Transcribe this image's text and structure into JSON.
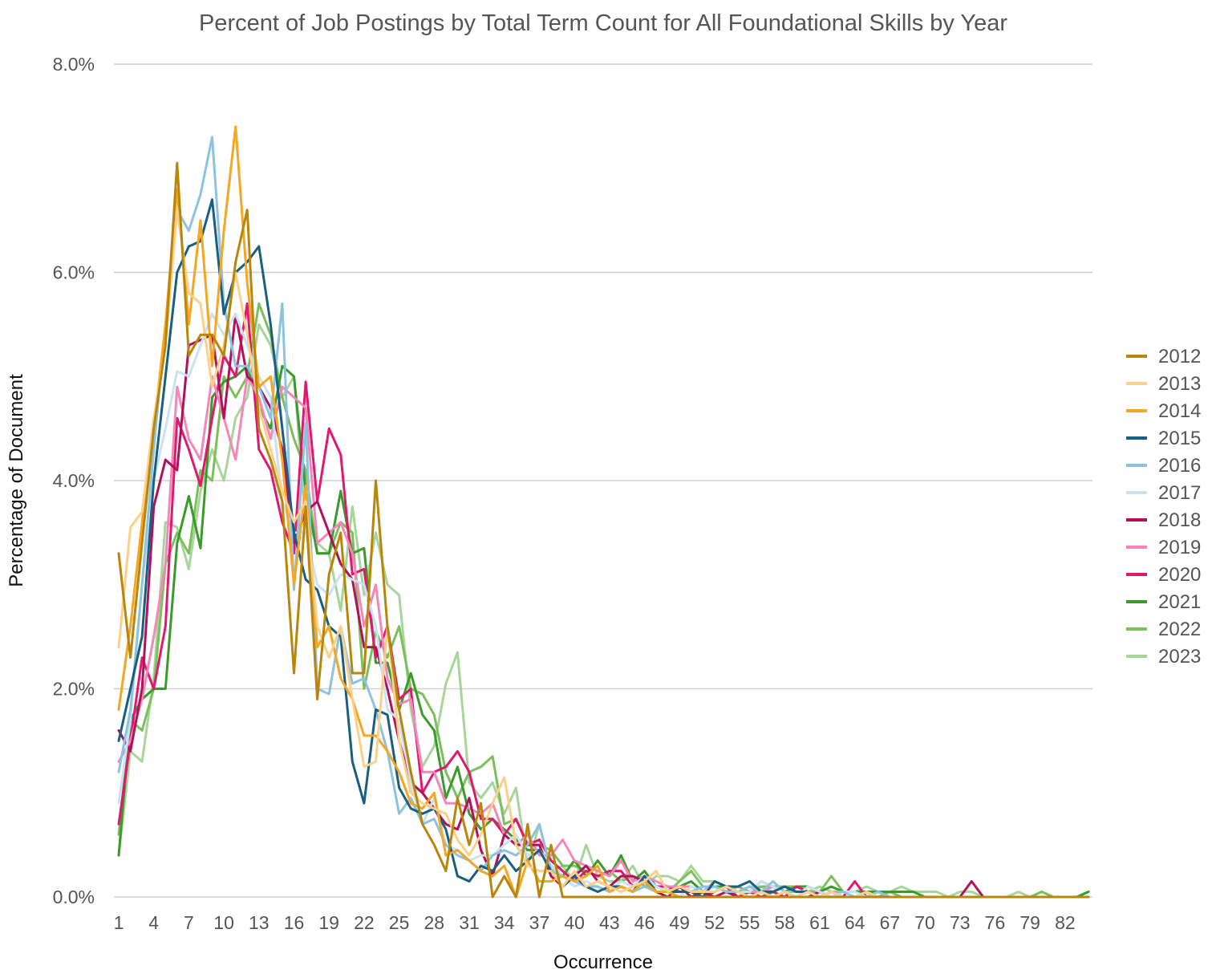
{
  "chart_data": {
    "type": "line",
    "title": "Percent of Job Postings by Total Term Count for All Foundational Skills by Year",
    "xlabel": "Occurrence",
    "ylabel": "Percentage of Document",
    "x_min": 1,
    "x_max": 84,
    "x_ticks": [
      "1",
      "4",
      "7",
      "10",
      "13",
      "16",
      "19",
      "22",
      "25",
      "28",
      "31",
      "34",
      "37",
      "40",
      "43",
      "46",
      "49",
      "52",
      "55",
      "58",
      "61",
      "64",
      "67",
      "70",
      "73",
      "76",
      "79",
      "82"
    ],
    "ylim": [
      0,
      8
    ],
    "y_ticks": [
      "0.0%",
      "2.0%",
      "4.0%",
      "6.0%",
      "8.0%"
    ],
    "grid": "horizontal",
    "legend_position": "right",
    "series": [
      {
        "name": "2012",
        "color": "#b8860b",
        "values": [
          3.3,
          2.3,
          3.4,
          4.5,
          5.3,
          7.05,
          5.2,
          5.4,
          5.4,
          5.2,
          6.1,
          6.6,
          4.5,
          4.2,
          3.8,
          2.15,
          3.75,
          1.9,
          3.1,
          3.5,
          2.15,
          2.15,
          4.0,
          2.6,
          1.8,
          1.2,
          0.7,
          0.5,
          0.25,
          0.95,
          0.5,
          0.9,
          0.0,
          0.2,
          0.0,
          0.7,
          0.0,
          0.5,
          0.0,
          0.0,
          0.0,
          0.0,
          0.0,
          0.0,
          0.0,
          0.0,
          0.0,
          0.0,
          0.0,
          0.0,
          0.0,
          0.0,
          0.0,
          0.0,
          0.0,
          0.0,
          0.0,
          0.0,
          0.0,
          0.0,
          0.0,
          0.0,
          0.0,
          0.0,
          0.0,
          0.0,
          0.0,
          0.0,
          0.0,
          0.0,
          0.0,
          0.0,
          0.0,
          0.0,
          0.0,
          0.0,
          0.0,
          0.0,
          0.0,
          0.0,
          0.0,
          0.0,
          0.0,
          0.0
        ]
      },
      {
        "name": "2013",
        "color": "#fdd08a",
        "values": [
          2.4,
          3.55,
          3.7,
          4.6,
          5.3,
          6.6,
          5.8,
          5.7,
          4.9,
          5.3,
          6.0,
          5.4,
          4.7,
          4.3,
          3.9,
          3.6,
          3.8,
          2.6,
          2.3,
          2.6,
          1.9,
          1.25,
          1.3,
          2.6,
          1.5,
          1.0,
          0.9,
          0.85,
          0.8,
          0.55,
          0.4,
          0.6,
          0.9,
          1.15,
          0.5,
          0.3,
          0.25,
          0.25,
          0.1,
          0.25,
          0.1,
          0.15,
          0.1,
          0.05,
          0.1,
          0.15,
          0.25,
          0.05,
          0.1,
          0.05,
          0.05,
          0.05,
          0.1,
          0.05,
          0.0,
          0.05,
          0.0,
          0.05,
          0.0,
          0.05,
          0.0,
          0.05,
          0.0,
          0.0,
          0.05,
          0.0,
          0.0,
          0.0,
          0.0,
          0.0,
          0.0,
          0.0,
          0.0,
          0.0,
          0.0,
          0.0,
          0.0,
          0.0,
          0.0,
          0.0,
          0.0,
          0.0,
          0.0,
          0.0
        ]
      },
      {
        "name": "2014",
        "color": "#f5a623",
        "values": [
          1.8,
          2.6,
          3.6,
          4.5,
          5.5,
          6.8,
          5.5,
          6.5,
          5.1,
          6.4,
          7.4,
          5.9,
          4.9,
          5.0,
          4.2,
          3.0,
          3.95,
          2.4,
          2.6,
          2.1,
          1.9,
          1.55,
          1.55,
          1.4,
          1.2,
          0.9,
          0.85,
          1.0,
          0.4,
          0.45,
          0.35,
          0.25,
          0.2,
          0.3,
          0.0,
          0.35,
          0.15,
          0.15,
          0.2,
          0.15,
          0.2,
          0.3,
          0.05,
          0.1,
          0.05,
          0.15,
          0.05,
          0.05,
          0.0,
          0.0,
          0.0,
          0.0,
          0.0,
          0.0,
          0.0,
          0.0,
          0.0,
          0.0,
          0.0,
          0.0,
          0.0,
          0.0,
          0.0,
          0.0,
          0.0,
          0.0,
          0.0,
          0.0,
          0.0,
          0.0,
          0.0,
          0.0,
          0.0,
          0.0,
          0.0,
          0.0,
          0.0,
          0.0,
          0.0,
          0.0,
          0.0,
          0.0,
          0.0,
          0.0
        ]
      },
      {
        "name": "2015",
        "color": "#1a5e80",
        "values": [
          1.5,
          2.0,
          2.5,
          4.0,
          5.0,
          6.0,
          6.25,
          6.3,
          6.7,
          5.6,
          6.0,
          6.1,
          6.25,
          5.5,
          4.5,
          3.5,
          3.05,
          2.95,
          2.6,
          2.5,
          1.3,
          0.9,
          1.8,
          1.75,
          1.05,
          0.85,
          0.8,
          0.85,
          0.65,
          0.2,
          0.15,
          0.3,
          0.25,
          0.4,
          0.25,
          0.35,
          0.45,
          0.25,
          0.1,
          0.2,
          0.1,
          0.05,
          0.1,
          0.1,
          0.05,
          0.2,
          0.05,
          0.05,
          0.05,
          0.05,
          0.0,
          0.15,
          0.1,
          0.1,
          0.15,
          0.05,
          0.05,
          0.1,
          0.05,
          0.05,
          0.0,
          0.05,
          0.0,
          0.0,
          0.0,
          0.0,
          0.0,
          0.0,
          0.0,
          0.0,
          0.0,
          0.0,
          0.0,
          0.0,
          0.0,
          0.0,
          0.0,
          0.0,
          0.0,
          0.0,
          0.0,
          0.0,
          0.0,
          0.0
        ]
      },
      {
        "name": "2016",
        "color": "#8ec3e0",
        "values": [
          1.2,
          1.8,
          3.0,
          4.3,
          5.5,
          6.6,
          6.4,
          6.75,
          7.3,
          5.7,
          5.1,
          5.1,
          4.9,
          4.6,
          5.7,
          2.95,
          4.55,
          2.0,
          1.95,
          2.6,
          2.05,
          2.1,
          1.8,
          1.4,
          0.8,
          0.95,
          0.7,
          0.75,
          0.5,
          0.4,
          0.35,
          0.25,
          0.4,
          0.45,
          0.4,
          0.5,
          0.7,
          0.25,
          0.2,
          0.15,
          0.1,
          0.1,
          0.05,
          0.1,
          0.05,
          0.1,
          0.05,
          0.05,
          0.05,
          0.05,
          0.1,
          0.1,
          0.05,
          0.05,
          0.1,
          0.05,
          0.15,
          0.05,
          0.05,
          0.05,
          0.0,
          0.05,
          0.05,
          0.0,
          0.0,
          0.05,
          0.0,
          0.0,
          0.0,
          0.0,
          0.0,
          0.0,
          0.0,
          0.0,
          0.0,
          0.0,
          0.0,
          0.0,
          0.0,
          0.0,
          0.0,
          0.0,
          0.0,
          0.0
        ]
      },
      {
        "name": "2017",
        "color": "#c9e1f2",
        "values": [
          0.9,
          1.7,
          3.0,
          4.0,
          4.5,
          5.05,
          5.0,
          5.3,
          5.6,
          5.4,
          5.6,
          5.3,
          5.0,
          4.8,
          3.8,
          3.5,
          3.5,
          3.0,
          2.9,
          3.1,
          3.05,
          3.0,
          2.6,
          1.8,
          1.7,
          1.1,
          0.7,
          0.95,
          0.5,
          0.45,
          0.35,
          0.4,
          0.4,
          0.5,
          0.6,
          0.4,
          0.45,
          0.3,
          0.2,
          0.1,
          0.15,
          0.1,
          0.05,
          0.15,
          0.1,
          0.2,
          0.1,
          0.05,
          0.0,
          0.1,
          0.05,
          0.1,
          0.05,
          0.05,
          0.05,
          0.15,
          0.1,
          0.05,
          0.0,
          0.1,
          0.05,
          0.0,
          0.05,
          0.05,
          0.0,
          0.0,
          0.0,
          0.0,
          0.0,
          0.0,
          0.0,
          0.0,
          0.0,
          0.0,
          0.0,
          0.0,
          0.0,
          0.0,
          0.0,
          0.0,
          0.0,
          0.0,
          0.0,
          0.0
        ]
      },
      {
        "name": "2018",
        "color": "#b0125a",
        "values": [
          1.6,
          1.4,
          2.0,
          3.75,
          4.2,
          4.1,
          5.3,
          5.35,
          5.4,
          4.6,
          5.6,
          5.0,
          4.9,
          4.7,
          4.3,
          3.4,
          3.7,
          3.8,
          3.5,
          3.2,
          3.05,
          2.4,
          2.4,
          2.0,
          1.5,
          1.1,
          1.0,
          0.85,
          0.7,
          0.65,
          0.95,
          0.45,
          0.2,
          0.6,
          0.5,
          0.5,
          0.5,
          0.2,
          0.1,
          0.2,
          0.3,
          0.15,
          0.1,
          0.2,
          0.2,
          0.15,
          0.05,
          0.0,
          0.1,
          0.0,
          0.05,
          0.0,
          0.05,
          0.0,
          0.0,
          0.05,
          0.0,
          0.05,
          0.0,
          0.0,
          0.05,
          0.0,
          0.0,
          0.0,
          0.0,
          0.0,
          0.0,
          0.0,
          0.0,
          0.0,
          0.0,
          0.0,
          0.0,
          0.15,
          0.0,
          0.0,
          0.0,
          0.0,
          0.0,
          0.0,
          0.0,
          0.0,
          0.0,
          0.0
        ]
      },
      {
        "name": "2019",
        "color": "#f287b8",
        "values": [
          1.3,
          1.5,
          1.9,
          2.5,
          3.2,
          4.9,
          4.4,
          4.2,
          5.0,
          4.6,
          4.2,
          5.0,
          4.8,
          4.4,
          4.9,
          4.8,
          4.7,
          3.4,
          3.5,
          3.6,
          3.3,
          2.6,
          3.0,
          2.1,
          1.85,
          1.9,
          1.2,
          1.2,
          0.9,
          0.9,
          0.85,
          0.8,
          0.9,
          0.6,
          0.5,
          0.6,
          0.4,
          0.4,
          0.55,
          0.35,
          0.3,
          0.25,
          0.2,
          0.35,
          0.15,
          0.2,
          0.15,
          0.1,
          0.1,
          0.1,
          0.05,
          0.15,
          0.1,
          0.05,
          0.05,
          0.05,
          0.1,
          0.05,
          0.05,
          0.05,
          0.0,
          0.0,
          0.0,
          0.0,
          0.0,
          0.0,
          0.0,
          0.0,
          0.0,
          0.0,
          0.0,
          0.0,
          0.0,
          0.0,
          0.0,
          0.0,
          0.0,
          0.0,
          0.0,
          0.0,
          0.0,
          0.0,
          0.0,
          0.0
        ]
      },
      {
        "name": "2020",
        "color": "#e0186f",
        "values": [
          0.7,
          1.5,
          2.3,
          2.0,
          2.6,
          4.6,
          4.3,
          3.95,
          4.6,
          5.2,
          5.0,
          5.7,
          4.3,
          4.1,
          3.6,
          3.3,
          4.95,
          3.8,
          4.5,
          4.25,
          3.1,
          3.15,
          2.3,
          2.6,
          1.9,
          2.0,
          1.0,
          1.2,
          1.25,
          1.4,
          1.2,
          0.75,
          0.75,
          0.6,
          0.75,
          0.5,
          0.55,
          0.35,
          0.25,
          0.15,
          0.25,
          0.2,
          0.25,
          0.25,
          0.1,
          0.2,
          0.1,
          0.1,
          0.05,
          0.05,
          0.0,
          0.05,
          0.1,
          0.0,
          0.05,
          0.0,
          0.05,
          0.0,
          0.1,
          0.05,
          0.0,
          0.0,
          0.0,
          0.15,
          0.0,
          0.0,
          0.0,
          0.0,
          0.0,
          0.0,
          0.0,
          0.0,
          0.0,
          0.0,
          0.0,
          0.0,
          0.0,
          0.0,
          0.0,
          0.0,
          0.0,
          0.0,
          0.0,
          0.0
        ]
      },
      {
        "name": "2021",
        "color": "#3a9a2a",
        "values": [
          0.4,
          1.7,
          1.9,
          2.0,
          2.0,
          3.4,
          3.85,
          3.35,
          4.8,
          4.95,
          5.0,
          5.1,
          4.7,
          4.5,
          5.1,
          5.0,
          3.9,
          3.3,
          3.3,
          3.9,
          3.3,
          3.35,
          2.25,
          2.25,
          1.8,
          2.15,
          1.75,
          1.6,
          0.95,
          1.25,
          0.8,
          0.65,
          0.75,
          0.65,
          0.55,
          0.45,
          0.45,
          0.3,
          0.2,
          0.35,
          0.2,
          0.35,
          0.2,
          0.4,
          0.15,
          0.25,
          0.1,
          0.1,
          0.1,
          0.15,
          0.05,
          0.1,
          0.1,
          0.05,
          0.05,
          0.15,
          0.1,
          0.05,
          0.1,
          0.1,
          0.05,
          0.1,
          0.05,
          0.05,
          0.05,
          0.05,
          0.05,
          0.05,
          0.05,
          0.0,
          0.0,
          0.0,
          0.0,
          0.0,
          0.0,
          0.0,
          0.0,
          0.0,
          0.0,
          0.0,
          0.0,
          0.0,
          0.0,
          0.05
        ]
      },
      {
        "name": "2022",
        "color": "#7cbf5c",
        "values": [
          0.6,
          1.7,
          1.6,
          2.0,
          3.2,
          3.5,
          3.3,
          4.1,
          4.0,
          5.0,
          4.8,
          5.0,
          5.7,
          5.4,
          4.8,
          4.4,
          4.1,
          3.3,
          3.3,
          3.6,
          3.5,
          2.0,
          2.55,
          2.3,
          2.6,
          2.0,
          1.95,
          1.75,
          1.2,
          0.95,
          1.2,
          1.25,
          1.35,
          0.7,
          0.75,
          0.5,
          0.5,
          0.45,
          0.3,
          0.3,
          0.25,
          0.2,
          0.25,
          0.15,
          0.2,
          0.1,
          0.1,
          0.05,
          0.15,
          0.25,
          0.1,
          0.1,
          0.05,
          0.1,
          0.05,
          0.1,
          0.1,
          0.1,
          0.1,
          0.05,
          0.05,
          0.2,
          0.05,
          0.05,
          0.05,
          0.0,
          0.05,
          0.0,
          0.0,
          0.0,
          0.0,
          0.0,
          0.0,
          0.0,
          0.0,
          0.0,
          0.0,
          0.0,
          0.0,
          0.05,
          0.0,
          0.0,
          0.0,
          0.05
        ]
      },
      {
        "name": "2023",
        "color": "#a8d59a",
        "values": [
          0.4,
          1.4,
          1.3,
          2.1,
          3.6,
          3.55,
          3.15,
          3.9,
          4.3,
          4.0,
          4.6,
          4.8,
          5.5,
          5.3,
          4.8,
          5.0,
          3.6,
          3.4,
          3.3,
          2.75,
          3.75,
          2.9,
          3.5,
          3.0,
          2.9,
          1.8,
          1.25,
          1.45,
          2.05,
          2.35,
          1.1,
          0.95,
          1.1,
          0.8,
          1.05,
          0.3,
          0.7,
          0.25,
          0.3,
          0.15,
          0.5,
          0.2,
          0.15,
          0.15,
          0.3,
          0.1,
          0.2,
          0.2,
          0.15,
          0.3,
          0.15,
          0.15,
          0.1,
          0.05,
          0.1,
          0.1,
          0.05,
          0.1,
          0.05,
          0.05,
          0.1,
          0.05,
          0.05,
          0.05,
          0.1,
          0.05,
          0.05,
          0.1,
          0.05,
          0.05,
          0.05,
          0.0,
          0.05,
          0.05,
          0.0,
          0.0,
          0.0,
          0.05,
          0.0,
          0.05,
          0.0,
          0.0,
          0.0,
          0.0
        ]
      }
    ]
  }
}
